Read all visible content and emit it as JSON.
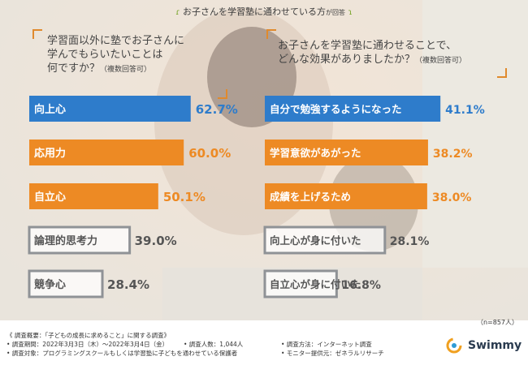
{
  "header": {
    "title_main": "お子さんを学習塾に通わせている方",
    "title_small": "が回答"
  },
  "left_question": {
    "line1": "学習面以外に塾でお子さんに",
    "line2": "学んでもらいたいことは",
    "line3": "何ですか？",
    "note": "（複数回答可）"
  },
  "right_question": {
    "line1": "お子さんを学習塾に通わせることで、",
    "line2": "どんな効果がありましたか？",
    "note": "（複数回答可）"
  },
  "colors": {
    "blue": "#2e7ccb",
    "orange": "#ed8a24",
    "gray": "#8f9296",
    "text_gray": "#555555"
  },
  "chart_data": [
    {
      "type": "bar",
      "categories": [
        "向上心",
        "応用力",
        "自立心",
        "論理的思考力",
        "競争心"
      ],
      "values": [
        62.7,
        60.0,
        50.1,
        39.0,
        28.4
      ],
      "value_labels": [
        "62.7%",
        "60.0%",
        "50.1%",
        "39.0%",
        "28.4%"
      ],
      "styles": [
        "blue",
        "orange",
        "orange",
        "gray",
        "gray"
      ],
      "xlim": [
        0,
        100
      ]
    },
    {
      "type": "bar",
      "categories": [
        "自分で勉強するようになった",
        "学習意欲があがった",
        "成績を上げるため",
        "向上心が身に付いた",
        "自立心が身に付いた"
      ],
      "values": [
        41.1,
        38.2,
        38.0,
        28.1,
        16.8
      ],
      "value_labels": [
        "41.1%",
        "38.2%",
        "38.0%",
        "28.1%",
        "16.8%"
      ],
      "styles": [
        "blue",
        "orange",
        "orange",
        "gray",
        "gray"
      ],
      "xlim": [
        0,
        100
      ]
    }
  ],
  "sample_size": "（n=857人）",
  "footnotes": {
    "line1": "《 調査概要：「子どもの成長に求めること」に関する調査》",
    "line2a": "• 調査期間：2022年3月3日（木）～2022年3月4日（金）",
    "line2b": "• 調査人数：1,044人",
    "line2c": "• 調査方法：インターネット調査",
    "line3a": "• 調査対象：プログラミングスクールもしくは学習塾に子どもを通わせている保護者",
    "line3b": "• モニター提供元：ゼネラルリサーチ"
  },
  "logo": {
    "name": "Swimmy",
    "icon": "swimmy-logo-icon"
  }
}
